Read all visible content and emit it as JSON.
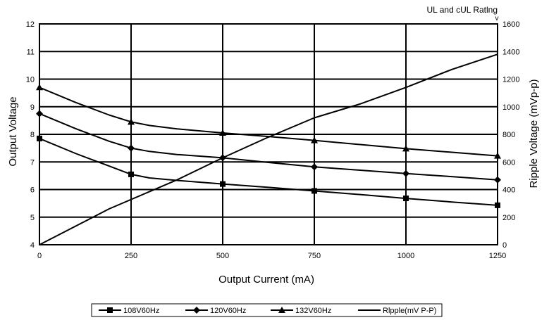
{
  "chart_data": {
    "type": "line",
    "title": "UL and cUL Ratlng",
    "title_suffix": "v",
    "xlabel": "Output Current (mA)",
    "ylabel": "Output Voltage",
    "y2label": "Ripple Voltage (mVp-p)",
    "xlim": [
      0,
      1250
    ],
    "ylim": [
      4,
      12
    ],
    "y2lim": [
      0,
      1600
    ],
    "x_ticks": [
      "0",
      "250",
      "500",
      "750",
      "1000",
      "1250"
    ],
    "y_ticks": [
      "4",
      "5",
      "6",
      "7",
      "8",
      "9",
      "10",
      "11",
      "12"
    ],
    "y2_ticks": [
      "0",
      "200",
      "400",
      "600",
      "800",
      "1000",
      "1200",
      "1400",
      "1600"
    ],
    "grid": true,
    "legend_position": "bottom",
    "series": [
      {
        "name": "108V60Hz",
        "marker": "square",
        "axis": "left",
        "points": [
          [
            0,
            7.85
          ],
          [
            100,
            7.3
          ],
          [
            190,
            6.85
          ],
          [
            250,
            6.55
          ],
          [
            300,
            6.42
          ],
          [
            375,
            6.33
          ],
          [
            500,
            6.2
          ],
          [
            625,
            6.08
          ],
          [
            750,
            5.95
          ],
          [
            875,
            5.82
          ],
          [
            1000,
            5.68
          ],
          [
            1125,
            5.55
          ],
          [
            1250,
            5.43
          ]
        ],
        "marker_x": [
          0,
          250,
          500,
          750,
          1000,
          1250
        ]
      },
      {
        "name": "120V60Hz",
        "marker": "diamond",
        "axis": "left",
        "points": [
          [
            0,
            8.75
          ],
          [
            100,
            8.2
          ],
          [
            190,
            7.75
          ],
          [
            250,
            7.5
          ],
          [
            300,
            7.38
          ],
          [
            375,
            7.27
          ],
          [
            500,
            7.15
          ],
          [
            625,
            6.98
          ],
          [
            750,
            6.82
          ],
          [
            875,
            6.7
          ],
          [
            1000,
            6.58
          ],
          [
            1125,
            6.47
          ],
          [
            1250,
            6.35
          ]
        ],
        "marker_x": [
          0,
          250,
          500,
          750,
          1000,
          1250
        ]
      },
      {
        "name": "132V60Hz",
        "marker": "triangle",
        "axis": "left",
        "points": [
          [
            0,
            9.7
          ],
          [
            100,
            9.15
          ],
          [
            190,
            8.7
          ],
          [
            250,
            8.45
          ],
          [
            300,
            8.32
          ],
          [
            375,
            8.2
          ],
          [
            500,
            8.05
          ],
          [
            625,
            7.92
          ],
          [
            750,
            7.78
          ],
          [
            875,
            7.63
          ],
          [
            1000,
            7.48
          ],
          [
            1125,
            7.35
          ],
          [
            1250,
            7.22
          ]
        ],
        "marker_x": [
          0,
          250,
          500,
          750,
          1000,
          1250
        ]
      },
      {
        "name": "Rlpple(mV P-P)",
        "marker": "none",
        "axis": "right",
        "points": [
          [
            0,
            0
          ],
          [
            190,
            260
          ],
          [
            375,
            470
          ],
          [
            500,
            630
          ],
          [
            625,
            780
          ],
          [
            750,
            920
          ],
          [
            875,
            1020
          ],
          [
            1000,
            1140
          ],
          [
            1125,
            1270
          ],
          [
            1250,
            1380
          ]
        ],
        "marker_x": []
      }
    ]
  }
}
